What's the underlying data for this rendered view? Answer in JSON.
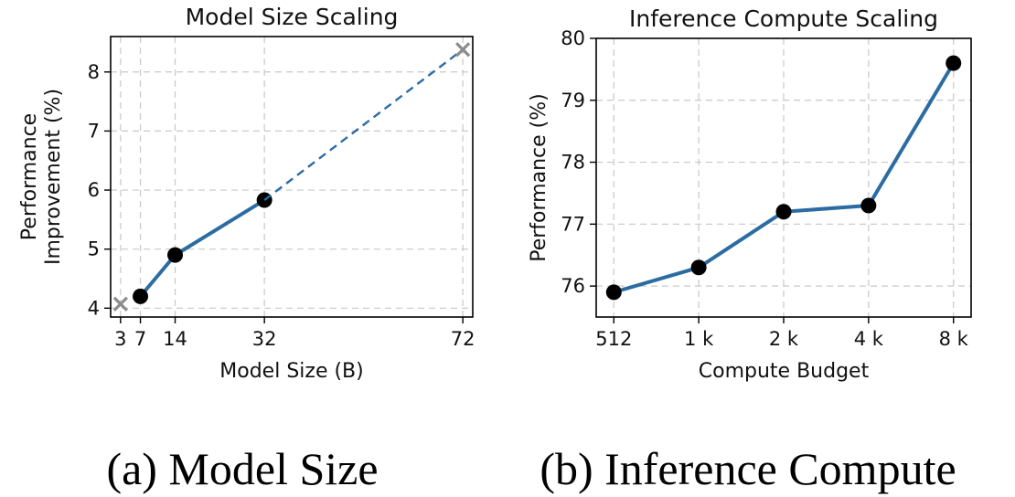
{
  "panels": [
    {
      "caption": "(a) Model Size",
      "chart_data": {
        "type": "line",
        "title": "Model Size Scaling",
        "xlabel": "Model Size (B)",
        "ylabel_lines": [
          "Performance",
          "Improvement (%)"
        ],
        "xlim": [
          1,
          74
        ],
        "ylim": [
          3.85,
          8.6
        ],
        "xticks": [
          3,
          7,
          14,
          32,
          72
        ],
        "xtick_labels": [
          "3",
          "7",
          "14",
          "32",
          "72"
        ],
        "yticks": [
          4,
          5,
          6,
          7,
          8
        ],
        "ytick_labels": [
          "4",
          "5",
          "6",
          "7",
          "8"
        ],
        "grid": true,
        "line_color": "#2b6ca3",
        "series": [
          {
            "style": "solid-line-with-markers",
            "x": [
              7,
              14,
              32
            ],
            "y": [
              4.2,
              4.9,
              5.83
            ]
          },
          {
            "style": "dashed-extrapolation",
            "x": [
              32,
              72
            ],
            "y": [
              5.83,
              8.38
            ]
          }
        ],
        "extrapolated_points": {
          "marker": "x",
          "color": "#8c8c8c",
          "x": [
            3,
            72
          ],
          "y": [
            4.07,
            8.38
          ]
        }
      }
    },
    {
      "caption": "(b) Inference Compute",
      "chart_data": {
        "type": "line",
        "title": "Inference Compute Scaling",
        "xlabel": "Compute Budget",
        "ylabel_lines": [
          "Performance (%)"
        ],
        "categories": [
          "512",
          "1 k",
          "2 k",
          "4 k",
          "8 k"
        ],
        "ylim": [
          75.5,
          80.0
        ],
        "yticks": [
          76,
          77,
          78,
          79,
          80
        ],
        "ytick_labels": [
          "76",
          "77",
          "78",
          "79",
          "80"
        ],
        "grid": true,
        "line_color": "#2b6ca3",
        "series": [
          {
            "style": "solid-line-with-markers",
            "values": [
              75.9,
              76.3,
              77.2,
              77.3,
              79.6
            ]
          }
        ]
      }
    }
  ]
}
